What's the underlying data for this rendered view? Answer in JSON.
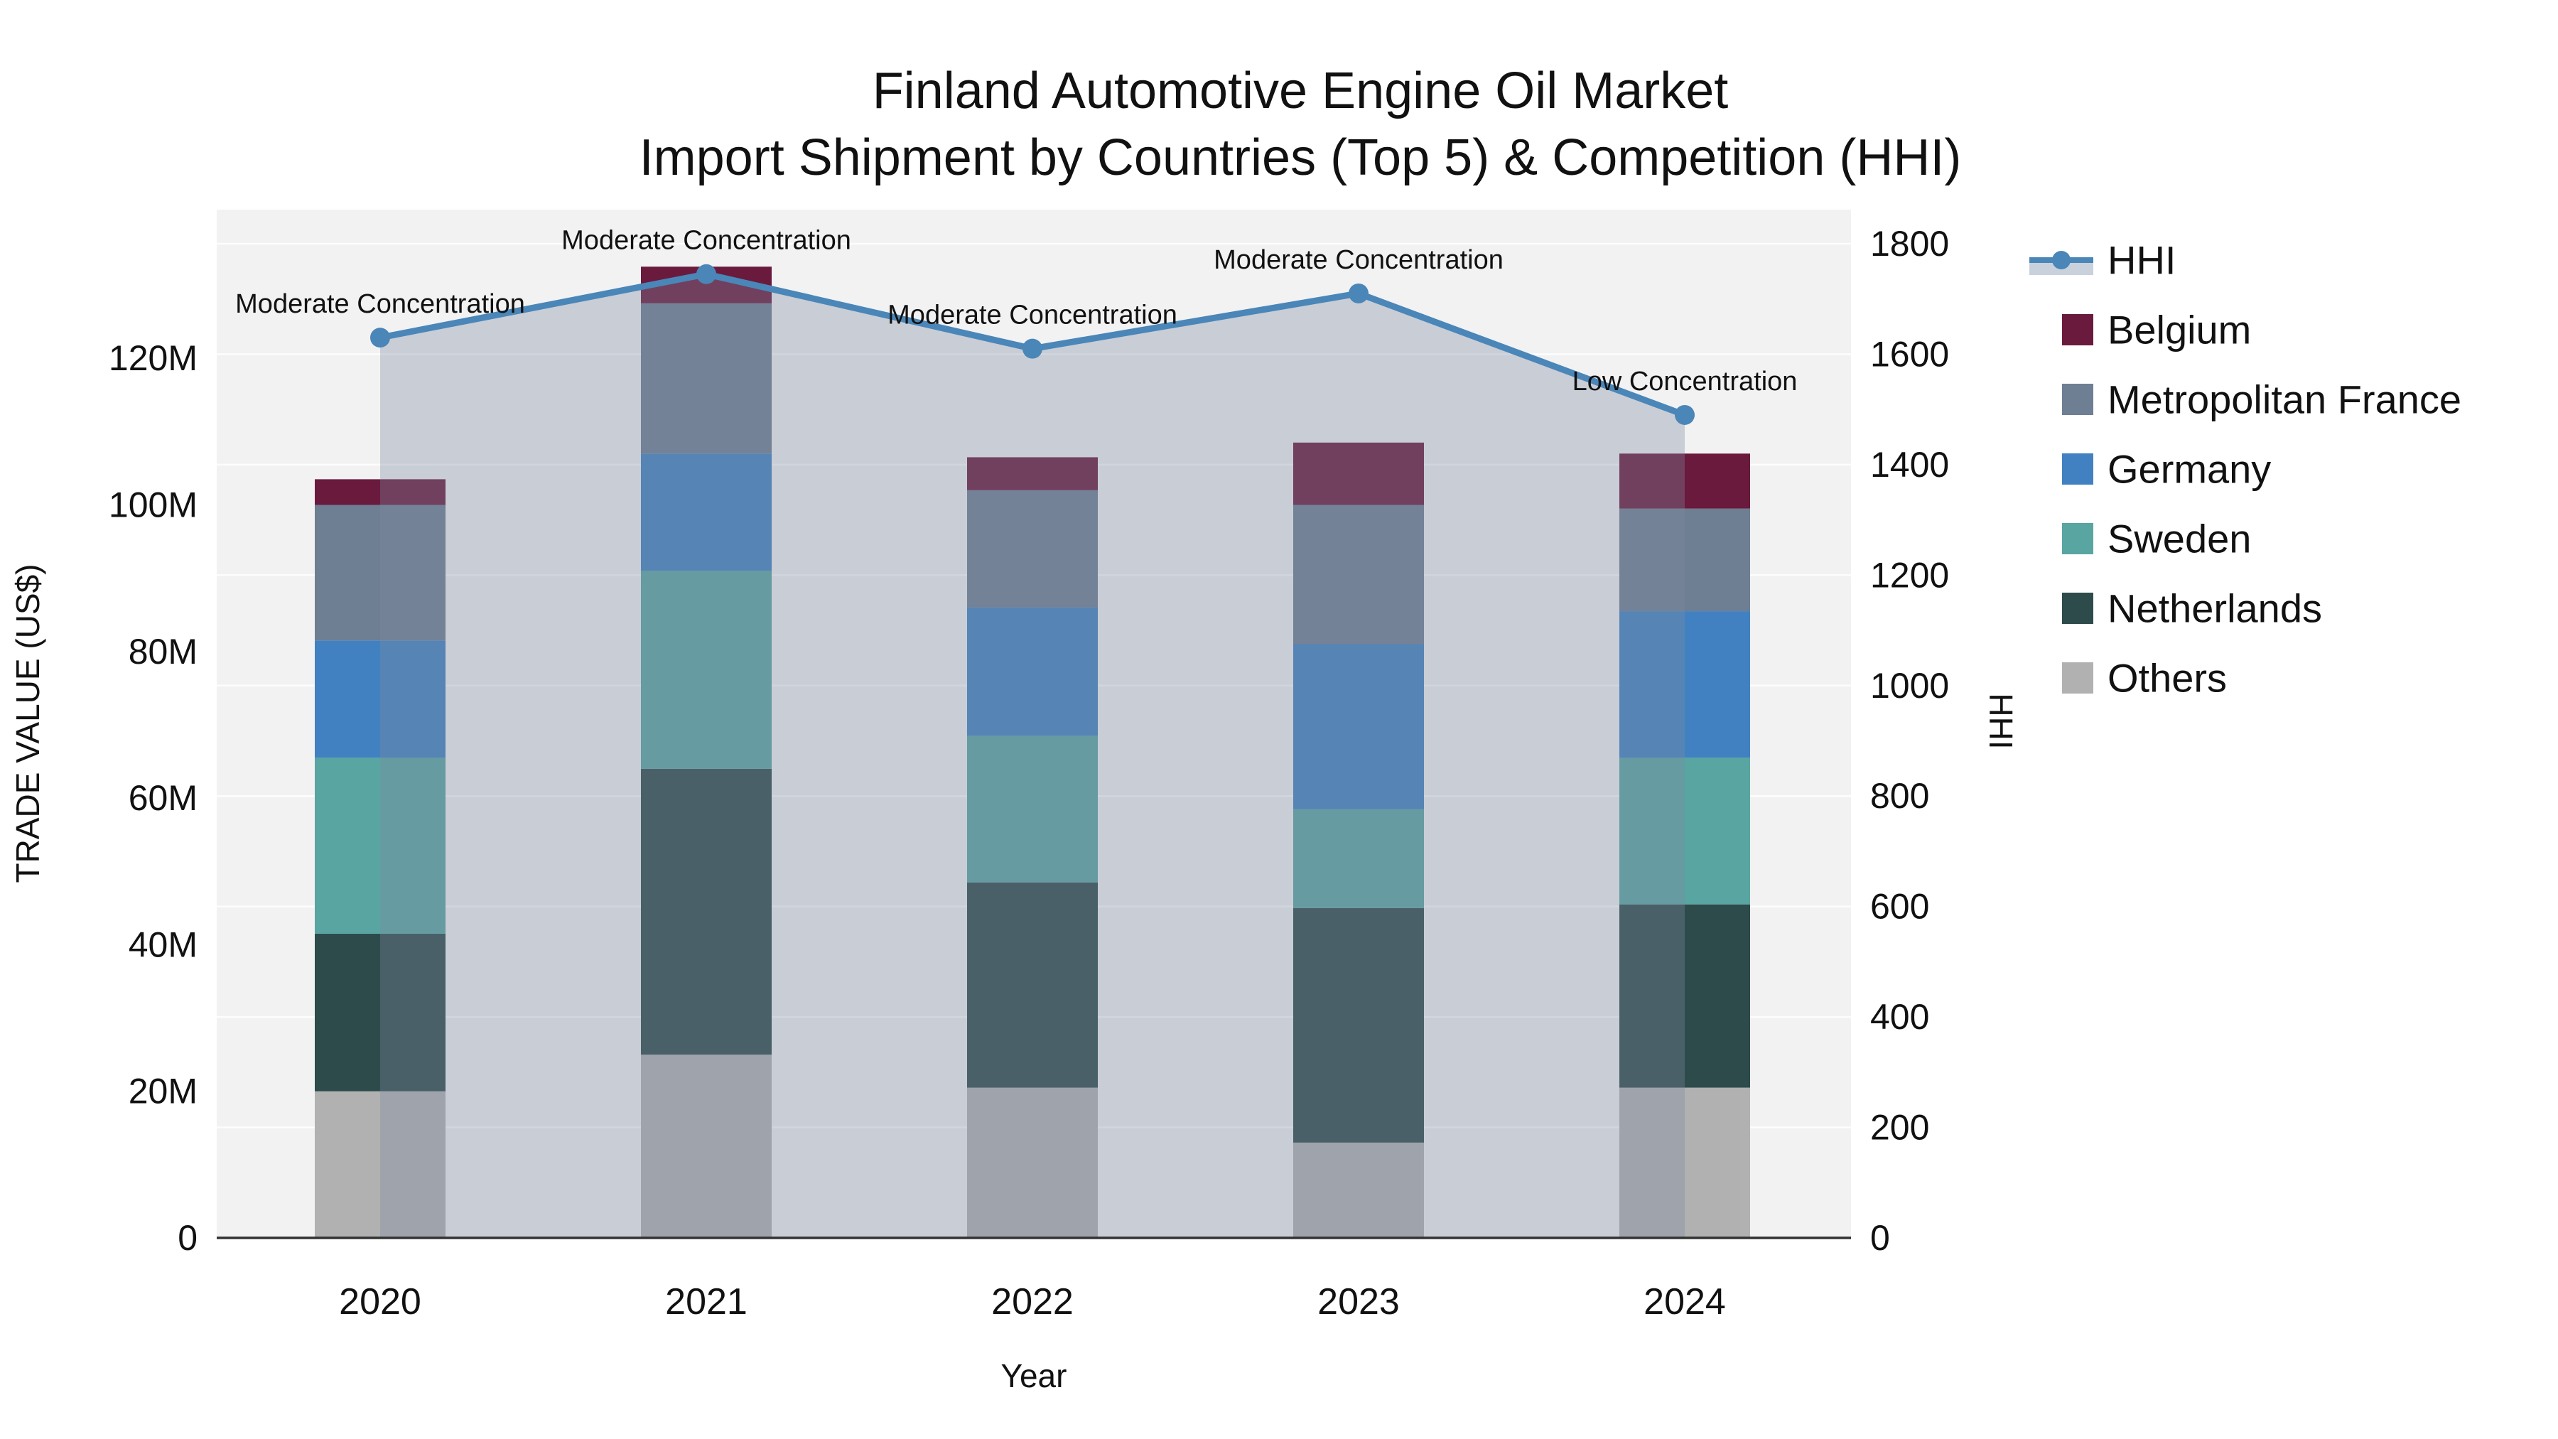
{
  "title": {
    "line1": "Finland Automotive Engine Oil Market",
    "line2": "Import Shipment by Countries (Top 5) & Competition (HHI)"
  },
  "legend": {
    "items": [
      {
        "label": "HHI",
        "type": "line",
        "color": "#4A86B8",
        "band_color": "#C9D1DC"
      },
      {
        "label": "Belgium",
        "type": "swatch",
        "color": "#6A1A3C"
      },
      {
        "label": "Metropolitan France",
        "type": "swatch",
        "color": "#6E7E93"
      },
      {
        "label": "Germany",
        "type": "swatch",
        "color": "#4181C1"
      },
      {
        "label": "Sweden",
        "type": "swatch",
        "color": "#58A5A2"
      },
      {
        "label": "Netherlands",
        "type": "swatch",
        "color": "#2D4B4A"
      },
      {
        "label": "Others",
        "type": "swatch",
        "color": "#B1B1B1"
      }
    ]
  },
  "chart_data": {
    "type": "bar",
    "subtype": "stacked-bars-with-hhi-line-area-overlay",
    "categories": [
      "2020",
      "2021",
      "2022",
      "2023",
      "2024"
    ],
    "x_title": "Year",
    "y_left": {
      "title": "TRADE VALUE (US$)",
      "tick_labels": [
        "0",
        "20M",
        "40M",
        "60M",
        "80M",
        "100M",
        "120M"
      ],
      "tick_values_musd": [
        0,
        20,
        40,
        60,
        80,
        100,
        120
      ],
      "axis_max_musd": 140.3
    },
    "y_right": {
      "title": "HHI",
      "tick_labels": [
        "0",
        "200",
        "400",
        "600",
        "800",
        "1000",
        "1200",
        "1400",
        "1600",
        "1800"
      ],
      "tick_values": [
        0,
        200,
        400,
        600,
        800,
        1000,
        1200,
        1400,
        1600,
        1800
      ],
      "axis_max": 1800
    },
    "bar_series": [
      {
        "name": "Belgium",
        "color": "#6A1A3C",
        "values_musd": [
          3.5,
          5,
          4.5,
          8.5,
          7.5
        ]
      },
      {
        "name": "Metropolitan France",
        "color": "#6E7E93",
        "values_musd": [
          18.5,
          20.5,
          16,
          19,
          14
        ]
      },
      {
        "name": "Germany",
        "color": "#4181C1",
        "values_musd": [
          16,
          16,
          17.5,
          22.5,
          20
        ]
      },
      {
        "name": "Sweden",
        "color": "#58A5A2",
        "values_musd": [
          24,
          27,
          20,
          13.5,
          20
        ]
      },
      {
        "name": "Netherlands",
        "color": "#2D4B4A",
        "values_musd": [
          21.5,
          39,
          28,
          32,
          25
        ]
      },
      {
        "name": "Others",
        "color": "#B1B1B1",
        "values_musd": [
          20,
          25,
          20.5,
          13,
          20.5
        ]
      }
    ],
    "bar_totals_musd": [
      103.5,
      132.5,
      106.5,
      108.5,
      107
    ],
    "stack_order_bottom_to_top": [
      "Others",
      "Netherlands",
      "Sweden",
      "Germany",
      "Metropolitan France",
      "Belgium"
    ],
    "line_series": {
      "name": "HHI",
      "color": "#4A86B8",
      "fill_color": "rgba(125,138,160,0.35)",
      "values": [
        1630,
        1745,
        1610,
        1710,
        1490
      ]
    },
    "annotations": [
      {
        "category": "2020",
        "text": "Moderate Concentration"
      },
      {
        "category": "2021",
        "text": "Moderate Concentration"
      },
      {
        "category": "2022",
        "text": "Moderate Concentration"
      },
      {
        "category": "2023",
        "text": "Moderate Concentration"
      },
      {
        "category": "2024",
        "text": "Low Concentration"
      }
    ],
    "grid": {
      "show": true,
      "color": "#FFFFFF",
      "follows": "y_right",
      "legend_position": "right"
    }
  }
}
